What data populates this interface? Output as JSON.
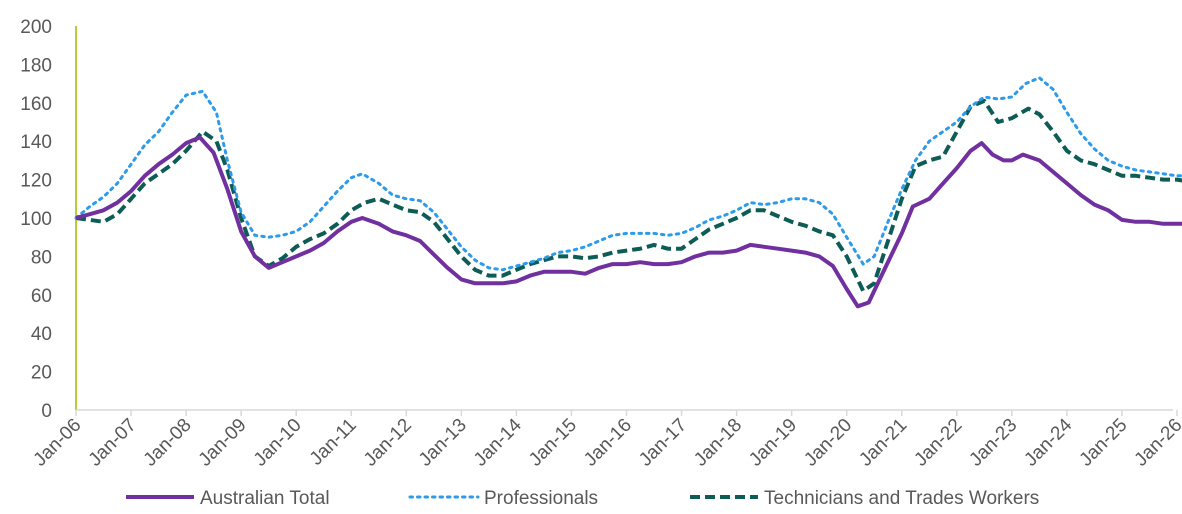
{
  "chart_data": {
    "type": "line",
    "y_ticks": [
      0,
      20,
      40,
      60,
      80,
      100,
      120,
      140,
      160,
      180,
      200
    ],
    "ylim": [
      0,
      200
    ],
    "x_tick_labels": [
      "Jan-06",
      "Jan-07",
      "Jan-08",
      "Jan-09",
      "Jan-10",
      "Jan-11",
      "Jan-12",
      "Jan-13",
      "Jan-14",
      "Jan-15",
      "Jan-16",
      "Jan-17",
      "Jan-18",
      "Jan-19",
      "Jan-20",
      "Jan-21",
      "Jan-22",
      "Jan-23",
      "Jan-24",
      "Jan-25",
      "Jan-26"
    ],
    "xlim": [
      2006.0,
      2026.2
    ],
    "grid": false,
    "legend_position": "bottom",
    "series": [
      {
        "name": "Australian Total",
        "color": "#7030A0",
        "style": "solid",
        "points": [
          [
            2006.0,
            100
          ],
          [
            2006.25,
            102
          ],
          [
            2006.5,
            104
          ],
          [
            2006.75,
            108
          ],
          [
            2007.0,
            114
          ],
          [
            2007.25,
            122
          ],
          [
            2007.5,
            128
          ],
          [
            2007.75,
            133
          ],
          [
            2008.0,
            139
          ],
          [
            2008.25,
            142
          ],
          [
            2008.5,
            134
          ],
          [
            2008.75,
            115
          ],
          [
            2009.0,
            93
          ],
          [
            2009.25,
            80
          ],
          [
            2009.5,
            74
          ],
          [
            2009.75,
            77
          ],
          [
            2010.0,
            80
          ],
          [
            2010.25,
            83
          ],
          [
            2010.5,
            87
          ],
          [
            2010.75,
            93
          ],
          [
            2011.0,
            98
          ],
          [
            2011.2,
            100
          ],
          [
            2011.5,
            97
          ],
          [
            2011.75,
            93
          ],
          [
            2012.0,
            91
          ],
          [
            2012.25,
            88
          ],
          [
            2012.5,
            81
          ],
          [
            2012.75,
            74
          ],
          [
            2013.0,
            68
          ],
          [
            2013.25,
            66
          ],
          [
            2013.5,
            66
          ],
          [
            2013.75,
            66
          ],
          [
            2014.0,
            67
          ],
          [
            2014.25,
            70
          ],
          [
            2014.5,
            72
          ],
          [
            2014.75,
            72
          ],
          [
            2015.0,
            72
          ],
          [
            2015.25,
            71
          ],
          [
            2015.5,
            74
          ],
          [
            2015.75,
            76
          ],
          [
            2016.0,
            76
          ],
          [
            2016.25,
            77
          ],
          [
            2016.5,
            76
          ],
          [
            2016.75,
            76
          ],
          [
            2017.0,
            77
          ],
          [
            2017.25,
            80
          ],
          [
            2017.5,
            82
          ],
          [
            2017.75,
            82
          ],
          [
            2018.0,
            83
          ],
          [
            2018.25,
            86
          ],
          [
            2018.5,
            85
          ],
          [
            2018.75,
            84
          ],
          [
            2019.0,
            83
          ],
          [
            2019.25,
            82
          ],
          [
            2019.5,
            80
          ],
          [
            2019.75,
            75
          ],
          [
            2020.0,
            63
          ],
          [
            2020.2,
            54
          ],
          [
            2020.4,
            56
          ],
          [
            2020.6,
            68
          ],
          [
            2020.8,
            80
          ],
          [
            2021.0,
            92
          ],
          [
            2021.2,
            106
          ],
          [
            2021.5,
            110
          ],
          [
            2021.75,
            118
          ],
          [
            2022.0,
            126
          ],
          [
            2022.25,
            135
          ],
          [
            2022.45,
            139
          ],
          [
            2022.65,
            133
          ],
          [
            2022.85,
            130
          ],
          [
            2023.0,
            130
          ],
          [
            2023.2,
            133
          ],
          [
            2023.5,
            130
          ],
          [
            2023.75,
            124
          ],
          [
            2024.0,
            118
          ],
          [
            2024.25,
            112
          ],
          [
            2024.5,
            107
          ],
          [
            2024.75,
            104
          ],
          [
            2025.0,
            99
          ],
          [
            2025.25,
            98
          ],
          [
            2025.5,
            98
          ],
          [
            2025.75,
            97
          ],
          [
            2026.0,
            97
          ],
          [
            2026.2,
            97
          ]
        ]
      },
      {
        "name": "Professionals",
        "color": "#2E9BEA",
        "style": "dotted",
        "points": [
          [
            2006.0,
            100
          ],
          [
            2006.25,
            106
          ],
          [
            2006.5,
            111
          ],
          [
            2006.75,
            118
          ],
          [
            2007.0,
            128
          ],
          [
            2007.25,
            138
          ],
          [
            2007.5,
            145
          ],
          [
            2007.75,
            155
          ],
          [
            2008.0,
            164
          ],
          [
            2008.3,
            166
          ],
          [
            2008.55,
            155
          ],
          [
            2008.75,
            130
          ],
          [
            2009.0,
            103
          ],
          [
            2009.25,
            91
          ],
          [
            2009.5,
            90
          ],
          [
            2009.75,
            91
          ],
          [
            2010.0,
            93
          ],
          [
            2010.25,
            98
          ],
          [
            2010.5,
            106
          ],
          [
            2010.75,
            114
          ],
          [
            2011.0,
            121
          ],
          [
            2011.2,
            123
          ],
          [
            2011.5,
            118
          ],
          [
            2011.75,
            112
          ],
          [
            2012.0,
            110
          ],
          [
            2012.25,
            109
          ],
          [
            2012.5,
            103
          ],
          [
            2012.75,
            94
          ],
          [
            2013.0,
            85
          ],
          [
            2013.25,
            78
          ],
          [
            2013.5,
            74
          ],
          [
            2013.75,
            73
          ],
          [
            2014.0,
            75
          ],
          [
            2014.25,
            77
          ],
          [
            2014.5,
            79
          ],
          [
            2014.75,
            82
          ],
          [
            2015.0,
            83
          ],
          [
            2015.25,
            85
          ],
          [
            2015.5,
            88
          ],
          [
            2015.75,
            91
          ],
          [
            2016.0,
            92
          ],
          [
            2016.25,
            92
          ],
          [
            2016.5,
            92
          ],
          [
            2016.75,
            91
          ],
          [
            2017.0,
            92
          ],
          [
            2017.25,
            95
          ],
          [
            2017.5,
            99
          ],
          [
            2017.75,
            101
          ],
          [
            2018.0,
            104
          ],
          [
            2018.25,
            108
          ],
          [
            2018.5,
            107
          ],
          [
            2018.75,
            108
          ],
          [
            2019.0,
            110
          ],
          [
            2019.25,
            110
          ],
          [
            2019.5,
            108
          ],
          [
            2019.75,
            102
          ],
          [
            2020.0,
            90
          ],
          [
            2020.3,
            76
          ],
          [
            2020.5,
            80
          ],
          [
            2020.75,
            98
          ],
          [
            2021.0,
            115
          ],
          [
            2021.25,
            130
          ],
          [
            2021.5,
            140
          ],
          [
            2021.75,
            145
          ],
          [
            2022.0,
            150
          ],
          [
            2022.25,
            158
          ],
          [
            2022.5,
            163
          ],
          [
            2022.75,
            162
          ],
          [
            2023.0,
            163
          ],
          [
            2023.25,
            170
          ],
          [
            2023.5,
            173
          ],
          [
            2023.75,
            167
          ],
          [
            2024.0,
            155
          ],
          [
            2024.25,
            144
          ],
          [
            2024.5,
            136
          ],
          [
            2024.75,
            130
          ],
          [
            2025.0,
            127
          ],
          [
            2025.25,
            125
          ],
          [
            2025.5,
            124
          ],
          [
            2025.75,
            123
          ],
          [
            2026.0,
            122
          ],
          [
            2026.2,
            122
          ]
        ]
      },
      {
        "name": "Technicians and Trades Workers",
        "color": "#0D5C55",
        "style": "dashed",
        "points": [
          [
            2006.0,
            100
          ],
          [
            2006.25,
            99
          ],
          [
            2006.5,
            98
          ],
          [
            2006.75,
            102
          ],
          [
            2007.0,
            110
          ],
          [
            2007.25,
            118
          ],
          [
            2007.5,
            123
          ],
          [
            2007.75,
            128
          ],
          [
            2008.0,
            135
          ],
          [
            2008.3,
            145
          ],
          [
            2008.55,
            140
          ],
          [
            2008.75,
            125
          ],
          [
            2009.0,
            100
          ],
          [
            2009.25,
            80
          ],
          [
            2009.5,
            75
          ],
          [
            2009.75,
            79
          ],
          [
            2010.0,
            85
          ],
          [
            2010.25,
            89
          ],
          [
            2010.5,
            92
          ],
          [
            2010.75,
            97
          ],
          [
            2011.0,
            104
          ],
          [
            2011.25,
            108
          ],
          [
            2011.5,
            110
          ],
          [
            2011.75,
            107
          ],
          [
            2012.0,
            104
          ],
          [
            2012.25,
            103
          ],
          [
            2012.5,
            98
          ],
          [
            2012.75,
            89
          ],
          [
            2013.0,
            80
          ],
          [
            2013.25,
            73
          ],
          [
            2013.5,
            70
          ],
          [
            2013.75,
            70
          ],
          [
            2014.0,
            73
          ],
          [
            2014.25,
            76
          ],
          [
            2014.5,
            78
          ],
          [
            2014.75,
            80
          ],
          [
            2015.0,
            80
          ],
          [
            2015.25,
            79
          ],
          [
            2015.5,
            80
          ],
          [
            2015.75,
            82
          ],
          [
            2016.0,
            83
          ],
          [
            2016.25,
            84
          ],
          [
            2016.5,
            86
          ],
          [
            2016.75,
            84
          ],
          [
            2017.0,
            84
          ],
          [
            2017.25,
            89
          ],
          [
            2017.5,
            94
          ],
          [
            2017.75,
            97
          ],
          [
            2018.0,
            100
          ],
          [
            2018.25,
            104
          ],
          [
            2018.5,
            104
          ],
          [
            2018.75,
            101
          ],
          [
            2019.0,
            98
          ],
          [
            2019.25,
            96
          ],
          [
            2019.5,
            93
          ],
          [
            2019.75,
            91
          ],
          [
            2020.0,
            80
          ],
          [
            2020.3,
            62
          ],
          [
            2020.5,
            66
          ],
          [
            2020.75,
            88
          ],
          [
            2021.0,
            110
          ],
          [
            2021.25,
            127
          ],
          [
            2021.5,
            130
          ],
          [
            2021.75,
            132
          ],
          [
            2022.0,
            145
          ],
          [
            2022.25,
            158
          ],
          [
            2022.5,
            161
          ],
          [
            2022.75,
            150
          ],
          [
            2023.0,
            152
          ],
          [
            2023.3,
            157
          ],
          [
            2023.5,
            154
          ],
          [
            2023.75,
            145
          ],
          [
            2024.0,
            135
          ],
          [
            2024.25,
            130
          ],
          [
            2024.5,
            128
          ],
          [
            2024.75,
            125
          ],
          [
            2025.0,
            122
          ],
          [
            2025.25,
            122
          ],
          [
            2025.5,
            121
          ],
          [
            2025.75,
            120
          ],
          [
            2026.0,
            120
          ],
          [
            2026.2,
            119
          ]
        ]
      }
    ]
  }
}
